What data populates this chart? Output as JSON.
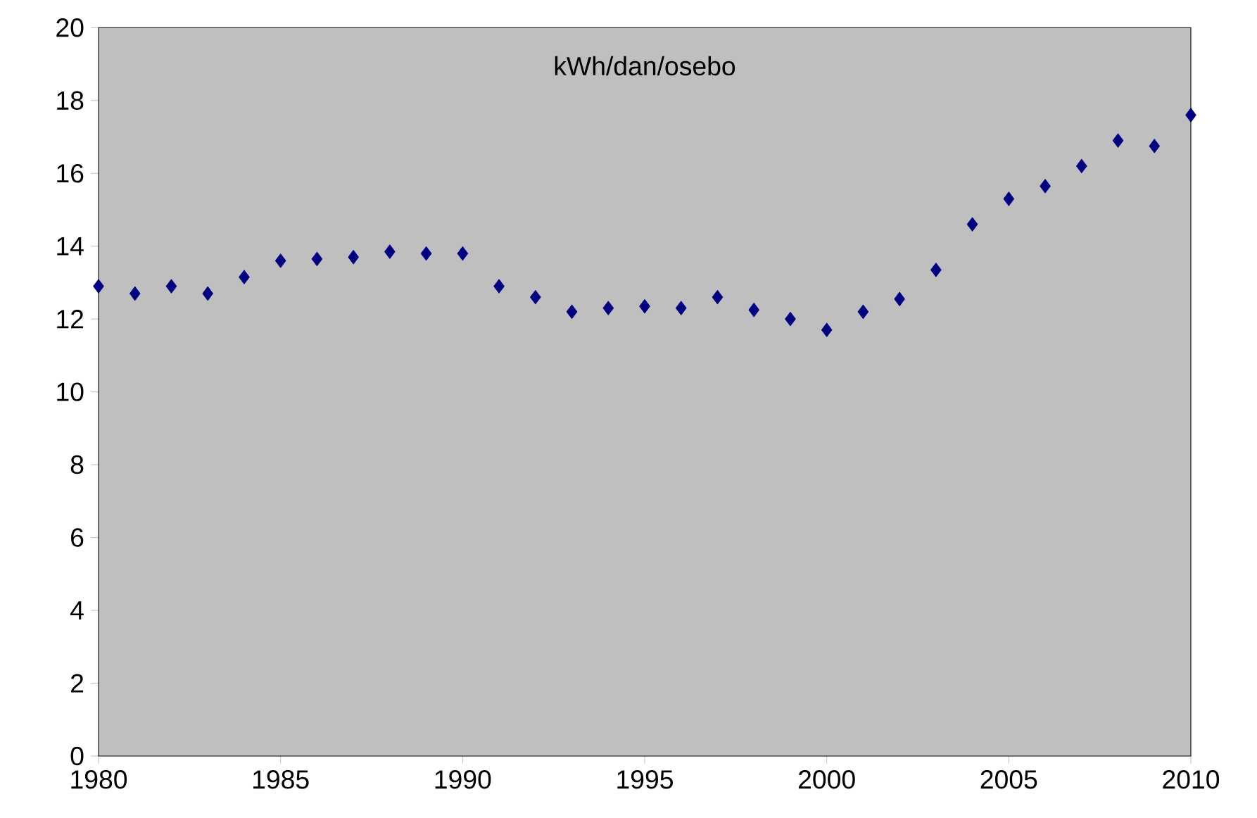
{
  "chart_data": {
    "type": "scatter",
    "title": "kWh/dan/osebo",
    "x": [
      1980,
      1981,
      1982,
      1983,
      1984,
      1985,
      1986,
      1987,
      1988,
      1989,
      1990,
      1991,
      1992,
      1993,
      1994,
      1995,
      1996,
      1997,
      1998,
      1999,
      2000,
      2001,
      2002,
      2003,
      2004,
      2005,
      2006,
      2007,
      2008,
      2009,
      2010
    ],
    "series": [
      {
        "color": "#000080",
        "values": [
          12.9,
          12.7,
          12.9,
          12.7,
          13.15,
          13.6,
          13.65,
          13.7,
          13.85,
          13.8,
          13.8,
          12.9,
          12.6,
          12.2,
          12.3,
          12.35,
          12.3,
          12.6,
          12.25,
          12.0,
          11.7,
          12.2,
          12.55,
          13.35,
          14.6,
          15.3,
          15.65,
          16.2,
          16.9,
          16.75,
          17.6
        ]
      }
    ],
    "xlim": [
      1980,
      2010
    ],
    "ylim": [
      0,
      20
    ],
    "xticks": [
      1980,
      1985,
      1990,
      1995,
      2000,
      2005,
      2010
    ],
    "yticks": [
      0,
      2,
      4,
      6,
      8,
      10,
      12,
      14,
      16,
      18,
      20
    ],
    "marker": "diamond",
    "grid": false
  }
}
